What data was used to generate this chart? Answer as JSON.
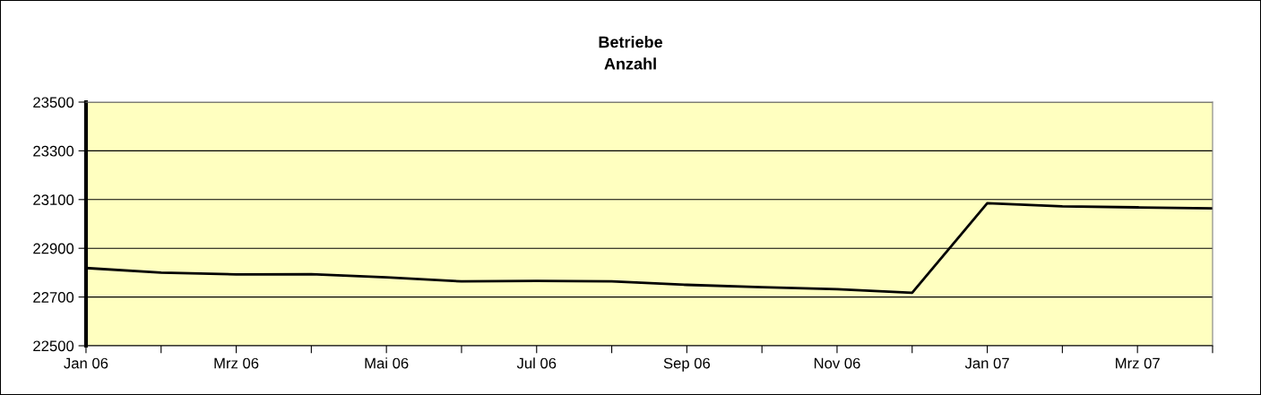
{
  "chart_data": {
    "type": "line",
    "title": "Betriebe",
    "subtitle": "Anzahl",
    "categories": [
      "Jan 06",
      null,
      "Mrz 06",
      null,
      "Mai 06",
      null,
      "Jul 06",
      null,
      "Sep 06",
      null,
      "Nov 06",
      null,
      "Jan 07",
      null,
      "Mrz 07",
      null
    ],
    "series": [
      {
        "color": "#000000",
        "values": [
          22819,
          22800,
          22793,
          22794,
          22781,
          22764,
          22766,
          22764,
          22750,
          22740,
          22732,
          22717,
          23085,
          23072,
          23068,
          23064
        ]
      }
    ],
    "ylim": [
      22500,
      23500
    ],
    "yticks": [
      22500,
      22700,
      22900,
      23100,
      23300,
      23500
    ],
    "grid": "y",
    "marker": "none",
    "line_style": "solid"
  }
}
